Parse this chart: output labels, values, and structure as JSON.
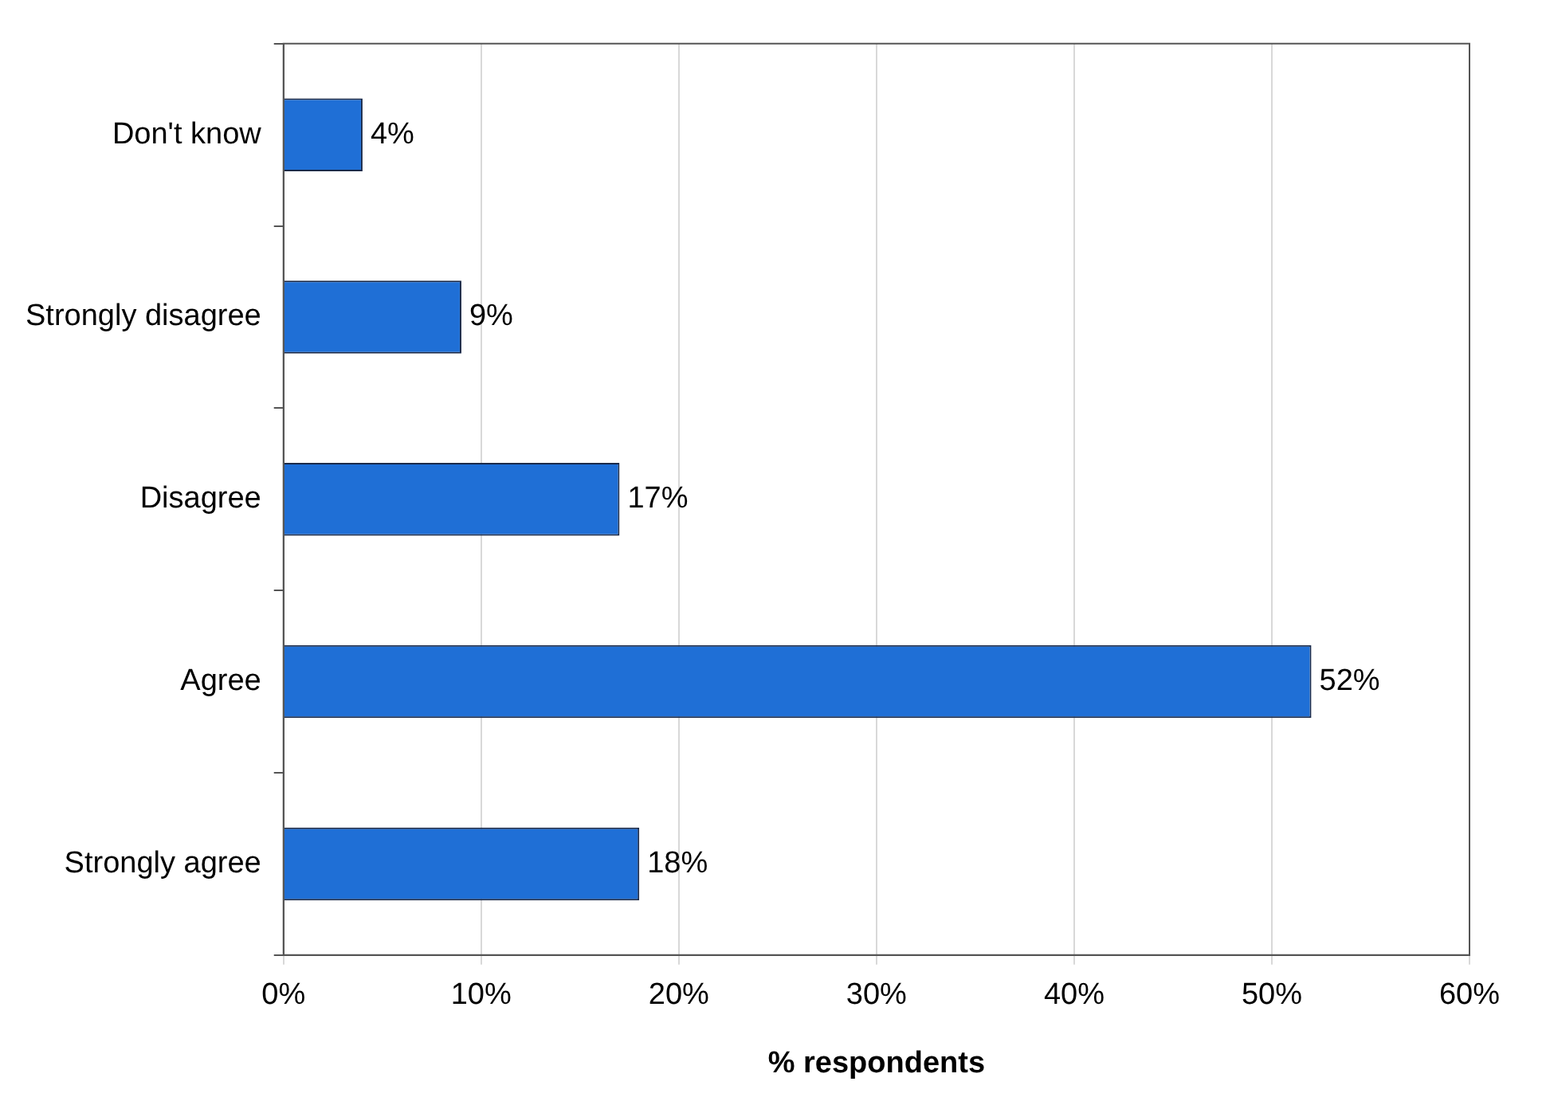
{
  "chart_data": {
    "type": "bar",
    "orientation": "horizontal",
    "xlabel": "% respondents",
    "categories": [
      "Don't know",
      "Strongly disagree",
      "Disagree",
      "Agree",
      "Strongly agree"
    ],
    "values": [
      4,
      9,
      17,
      52,
      18
    ],
    "value_labels": [
      "4%",
      "9%",
      "17%",
      "52%",
      "18%"
    ],
    "color": "#1f6fd6",
    "xlim": [
      0,
      60
    ],
    "xticks": [
      {
        "value": 0,
        "label": "0%"
      },
      {
        "value": 10,
        "label": "10%"
      },
      {
        "value": 20,
        "label": "20%"
      },
      {
        "value": 30,
        "label": "30%"
      },
      {
        "value": 40,
        "label": "40%"
      },
      {
        "value": 50,
        "label": "50%"
      },
      {
        "value": 60,
        "label": "60%"
      }
    ],
    "grid": "x",
    "legend": false
  }
}
